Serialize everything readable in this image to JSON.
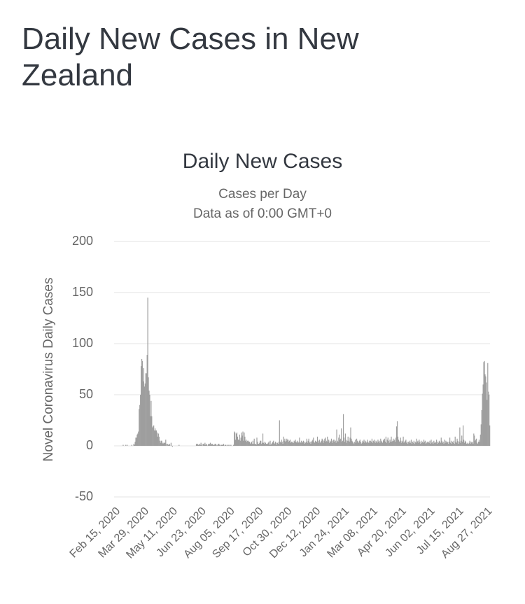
{
  "header": {
    "title": "Daily New Cases in New Zealand"
  },
  "chart_data": {
    "type": "bar",
    "title": "Daily New Cases",
    "subtitle": [
      "Cases per Day",
      "Data as of 0:00 GMT+0"
    ],
    "y_label": "Novel Coronavirus Daily Cases",
    "color": "#9e9e9e",
    "grid": true,
    "ylim": [
      -50,
      200
    ],
    "yticks": [
      -50,
      0,
      50,
      100,
      150,
      200
    ],
    "categories": [
      "Feb 15, 2020",
      null,
      null,
      null,
      null,
      null,
      null,
      null,
      null,
      null,
      null,
      null,
      null,
      null,
      null,
      null,
      null,
      null,
      null,
      null,
      null,
      null,
      null,
      null,
      null,
      null,
      null,
      null,
      null,
      null,
      null,
      null,
      null,
      null,
      null,
      null,
      null,
      null,
      null,
      null,
      null,
      null,
      null,
      "Mar 29, 2020",
      null,
      null,
      null,
      null,
      null,
      null,
      null,
      null,
      null,
      null,
      null,
      null,
      null,
      null,
      null,
      null,
      null,
      null,
      null,
      null,
      null,
      null,
      null,
      null,
      null,
      null,
      null,
      null,
      null,
      null,
      null,
      null,
      null,
      null,
      null,
      null,
      null,
      null,
      null,
      null,
      null,
      null,
      "May 11, 2020",
      null,
      null,
      null,
      null,
      null,
      null,
      null,
      null,
      null,
      null,
      null,
      null,
      null,
      null,
      null,
      null,
      null,
      null,
      null,
      null,
      null,
      null,
      null,
      null,
      null,
      null,
      null,
      null,
      null,
      null,
      null,
      null,
      null,
      null,
      null,
      null,
      null,
      null,
      null,
      null,
      null,
      null,
      "Jun 23, 2020",
      null,
      null,
      null,
      null,
      null,
      null,
      null,
      null,
      null,
      null,
      null,
      null,
      null,
      null,
      null,
      null,
      null,
      null,
      null,
      null,
      null,
      null,
      null,
      null,
      null,
      null,
      null,
      null,
      null,
      null,
      null,
      null,
      null,
      null,
      null,
      null,
      null,
      null,
      null,
      null,
      null,
      null,
      "Aug 05, 2020",
      null,
      null,
      null,
      null,
      null,
      null,
      null,
      null,
      null,
      null,
      null,
      null,
      null,
      null,
      null,
      null,
      null,
      null,
      null,
      null,
      null,
      null,
      null,
      null,
      null,
      null,
      null,
      null,
      null,
      null,
      null,
      null,
      null,
      null,
      null,
      null,
      null,
      null,
      null,
      null,
      null,
      null,
      "Sep 17, 2020",
      null,
      null,
      null,
      null,
      null,
      null,
      null,
      null,
      null,
      null,
      null,
      null,
      null,
      null,
      null,
      null,
      null,
      null,
      null,
      null,
      null,
      null,
      null,
      null,
      null,
      null,
      null,
      null,
      null,
      null,
      null,
      null,
      null,
      null,
      null,
      null,
      null,
      null,
      null,
      null,
      null,
      null,
      "Oct 30, 2020",
      null,
      null,
      null,
      null,
      null,
      null,
      null,
      null,
      null,
      null,
      null,
      null,
      null,
      null,
      null,
      null,
      null,
      null,
      null,
      null,
      null,
      null,
      null,
      null,
      null,
      null,
      null,
      null,
      null,
      null,
      null,
      null,
      null,
      null,
      null,
      null,
      null,
      null,
      null,
      null,
      null,
      null,
      "Dec 12, 2020",
      null,
      null,
      null,
      null,
      null,
      null,
      null,
      null,
      null,
      null,
      null,
      null,
      null,
      null,
      null,
      null,
      null,
      null,
      null,
      null,
      null,
      null,
      null,
      null,
      null,
      null,
      null,
      null,
      null,
      null,
      null,
      null,
      null,
      null,
      null,
      null,
      null,
      null,
      null,
      null,
      null,
      null,
      "Jan 24, 2021",
      null,
      null,
      null,
      null,
      null,
      null,
      null,
      null,
      null,
      null,
      null,
      null,
      null,
      null,
      null,
      null,
      null,
      null,
      null,
      null,
      null,
      null,
      null,
      null,
      null,
      null,
      null,
      null,
      null,
      null,
      null,
      null,
      null,
      null,
      null,
      null,
      null,
      null,
      null,
      null,
      null,
      null,
      "Mar 08, 2021",
      null,
      null,
      null,
      null,
      null,
      null,
      null,
      null,
      null,
      null,
      null,
      null,
      null,
      null,
      null,
      null,
      null,
      null,
      null,
      null,
      null,
      null,
      null,
      null,
      null,
      null,
      null,
      null,
      null,
      null,
      null,
      null,
      null,
      null,
      null,
      null,
      null,
      null,
      null,
      null,
      null,
      null,
      "Apr 20, 2021",
      null,
      null,
      null,
      null,
      null,
      null,
      null,
      null,
      null,
      null,
      null,
      null,
      null,
      null,
      null,
      null,
      null,
      null,
      null,
      null,
      null,
      null,
      null,
      null,
      null,
      null,
      null,
      null,
      null,
      null,
      null,
      null,
      null,
      null,
      null,
      null,
      null,
      null,
      null,
      null,
      null,
      null,
      "Jun 02, 2021",
      null,
      null,
      null,
      null,
      null,
      null,
      null,
      null,
      null,
      null,
      null,
      null,
      null,
      null,
      null,
      null,
      null,
      null,
      null,
      null,
      null,
      null,
      null,
      null,
      null,
      null,
      null,
      null,
      null,
      null,
      null,
      null,
      null,
      null,
      null,
      null,
      null,
      null,
      null,
      null,
      null,
      null,
      "Jul 15, 2021",
      null,
      null,
      null,
      null,
      null,
      null,
      null,
      null,
      null,
      null,
      null,
      null,
      null,
      null,
      null,
      null,
      null,
      null,
      null,
      null,
      null,
      null,
      null,
      null,
      null,
      null,
      null,
      null,
      null,
      null,
      null,
      null,
      null,
      null,
      null,
      null,
      null,
      null,
      null,
      null,
      null,
      null,
      "Aug 27, 2021",
      null,
      null,
      null,
      null,
      null
    ],
    "values": [
      0,
      0,
      0,
      0,
      0,
      0,
      0,
      0,
      0,
      0,
      0,
      0,
      0,
      1,
      0,
      0,
      0,
      1,
      0,
      1,
      0,
      0,
      0,
      0,
      0,
      0,
      1,
      0,
      0,
      2,
      1,
      4,
      8,
      8,
      11,
      12,
      14,
      36,
      40,
      50,
      78,
      85,
      83,
      63,
      76,
      58,
      61,
      71,
      71,
      89,
      145,
      67,
      54,
      50,
      29,
      44,
      29,
      18,
      19,
      20,
      15,
      17,
      15,
      15,
      13,
      9,
      12,
      9,
      5,
      3,
      5,
      5,
      3,
      2,
      3,
      3,
      3,
      6,
      2,
      0,
      2,
      1,
      1,
      2,
      0,
      3,
      0,
      -1,
      0,
      0,
      0,
      0,
      0,
      0,
      0,
      0,
      0,
      1,
      0,
      0,
      0,
      0,
      0,
      0,
      0,
      0,
      0,
      0,
      0,
      0,
      0,
      0,
      0,
      0,
      0,
      0,
      0,
      0,
      0,
      0,
      0,
      0,
      0,
      2,
      1,
      2,
      1,
      1,
      2,
      1,
      3,
      1,
      0,
      2,
      2,
      1,
      3,
      1,
      2,
      1,
      0,
      2,
      1,
      2,
      3,
      1,
      2,
      2,
      1,
      1,
      1,
      2,
      2,
      1,
      0,
      1,
      2,
      2,
      1,
      0,
      1,
      1,
      1,
      1,
      2,
      0,
      1,
      1,
      0,
      1,
      0,
      1,
      0,
      1,
      0,
      1,
      0,
      0,
      0,
      1,
      14,
      13,
      6,
      12,
      13,
      9,
      6,
      6,
      11,
      5,
      8,
      13,
      10,
      14,
      5,
      13,
      9,
      5,
      6,
      4,
      5,
      5,
      4,
      4,
      2,
      3,
      4,
      2,
      5,
      2,
      7,
      2,
      2,
      1,
      8,
      4,
      2,
      2,
      3,
      5,
      5,
      2,
      3,
      12,
      3,
      2,
      4,
      3,
      2,
      2,
      2,
      3,
      4,
      1,
      5,
      1,
      2,
      3,
      4,
      5,
      3,
      2,
      4,
      3,
      1,
      3,
      2,
      4,
      25,
      4,
      3,
      6,
      4,
      2,
      9,
      5,
      7,
      4,
      5,
      7,
      6,
      6,
      4,
      5,
      6,
      3,
      4,
      4,
      3,
      3,
      5,
      4,
      6,
      4,
      3,
      5,
      4,
      3,
      8,
      4,
      3,
      5,
      3,
      4,
      5,
      4,
      2,
      3,
      4,
      7,
      3,
      5,
      7,
      3,
      4,
      2,
      4,
      5,
      6,
      8,
      4,
      3,
      5,
      4,
      4,
      9,
      3,
      5,
      6,
      3,
      4,
      5,
      7,
      6,
      3,
      5,
      7,
      8,
      4,
      5,
      9,
      4,
      6,
      3,
      5,
      4,
      7,
      3,
      5,
      6,
      4,
      6,
      5,
      3,
      16,
      5,
      4,
      8,
      11,
      6,
      7,
      17,
      4,
      5,
      31,
      8,
      4,
      12,
      6,
      3,
      5,
      9,
      5,
      4,
      8,
      18,
      7,
      5,
      4,
      3,
      2,
      4,
      6,
      3,
      7,
      5,
      4,
      3,
      5,
      6,
      4,
      2,
      3,
      5,
      4,
      6,
      3,
      5,
      4,
      3,
      6,
      4,
      3,
      5,
      3,
      5,
      4,
      7,
      3,
      5,
      4,
      6,
      3,
      5,
      4,
      3,
      6,
      4,
      5,
      3,
      7,
      5,
      4,
      3,
      6,
      5,
      7,
      4,
      9,
      3,
      6,
      8,
      5,
      3,
      6,
      4,
      9,
      4,
      5,
      7,
      5,
      6,
      4,
      8,
      19,
      24,
      9,
      6,
      4,
      5,
      8,
      3,
      5,
      4,
      9,
      3,
      4,
      5,
      6,
      3,
      4,
      2,
      4,
      3,
      5,
      3,
      6,
      2,
      4,
      3,
      5,
      2,
      4,
      3,
      7,
      4,
      5,
      3,
      6,
      4,
      2,
      5,
      3,
      4,
      3,
      6,
      4,
      5,
      2,
      3,
      4,
      3,
      4,
      3,
      5,
      2,
      6,
      3,
      4,
      2,
      5,
      3,
      4,
      3,
      6,
      2,
      4,
      3,
      5,
      4,
      3,
      8,
      5,
      3,
      4,
      2,
      6,
      3,
      5,
      4,
      3,
      4,
      2,
      4,
      8,
      3,
      5,
      2,
      4,
      3,
      5,
      2,
      9,
      4,
      3,
      7,
      5,
      2,
      4,
      18,
      3,
      5,
      10,
      4,
      20,
      6,
      3,
      5,
      4,
      2,
      3,
      2,
      2,
      3,
      5,
      2,
      4,
      3,
      4,
      2,
      12,
      10,
      5,
      6,
      7,
      3,
      2,
      4,
      6,
      4,
      11,
      21,
      35,
      51,
      60,
      82,
      83,
      70,
      68,
      62,
      45,
      81,
      53,
      50,
      20
    ]
  }
}
